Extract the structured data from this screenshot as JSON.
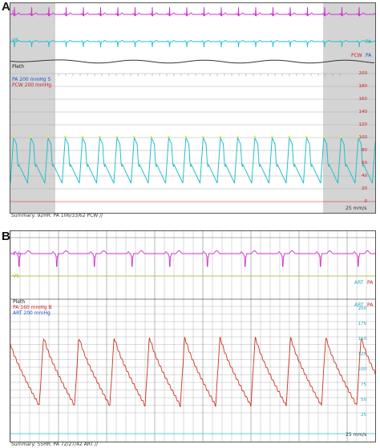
{
  "panels": [
    {
      "letter": "A",
      "lead1": "II",
      "lead2": "V6",
      "pleth": "Pleth",
      "scale1": "PA  200  mmHg  S",
      "scale2": "PCW  200  mmHg",
      "right_labels": [
        "PCW",
        "PA",
        "PA"
      ],
      "ticks": [
        "200",
        "180",
        "160",
        "140",
        "120",
        "100",
        "80",
        "60",
        "40",
        "20",
        "0"
      ],
      "speed": "25 mm/s",
      "summary": "Summary:  92HR: PA 106/33/62 PCW //"
    },
    {
      "letter": "B",
      "lead1": "II  A",
      "lead2": "V5",
      "pleth": "Pleth",
      "scale1": "PA  160  mmHg  B",
      "scale2": "ART  200  mmHg",
      "right_labels": [
        "ART",
        "PA",
        "ART",
        "PA"
      ],
      "ticks": [
        "200",
        "175",
        "150",
        "125",
        "100",
        "75",
        "50",
        "25"
      ],
      "speed": "25 mm/s",
      "summary": "Summary:  55HR: PA 72/27/42 ART //"
    }
  ],
  "colors": {
    "ecg1": "#cc33cc",
    "ecg2": "#22c0cc",
    "pleth": "#333333",
    "pa_wave_a": "#22c0cc",
    "pcw_peak": "#eeee22",
    "pa_wave_b": "#cc3322",
    "scale_red": "#cc2222",
    "scale_blue": "#1a55cc",
    "gray_shade": "#d4d4d4",
    "grid": "#999999"
  }
}
